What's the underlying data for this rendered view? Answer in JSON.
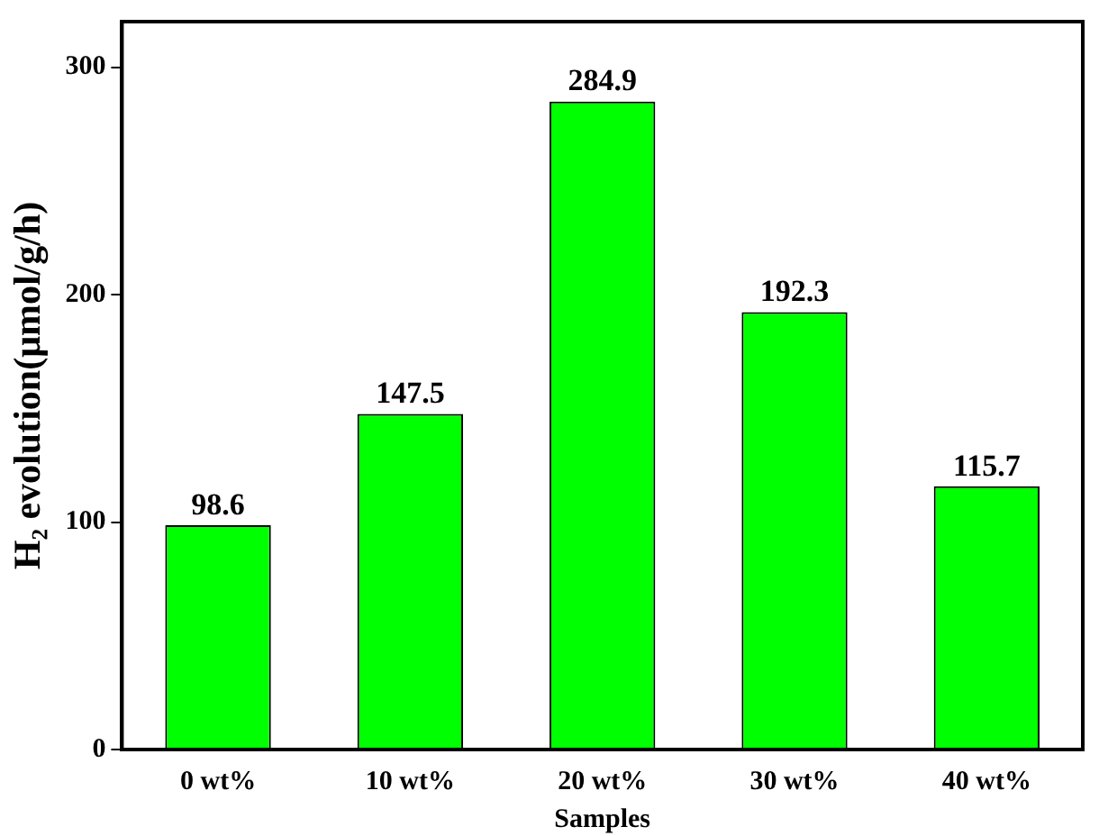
{
  "chart_data": {
    "type": "bar",
    "categories": [
      "0 wt%",
      "10 wt%",
      "20 wt%",
      "30 wt%",
      "40 wt%"
    ],
    "values": [
      98.6,
      147.5,
      284.9,
      192.3,
      115.7
    ],
    "color": "#00ff00",
    "xlabel": "Samples",
    "ylabel": "H₂ evolution(μmol/g/h)",
    "ylim": [
      0,
      320
    ],
    "yticks": [
      0,
      100,
      200,
      300
    ],
    "grid": false,
    "legend": false,
    "data_labels": true
  }
}
